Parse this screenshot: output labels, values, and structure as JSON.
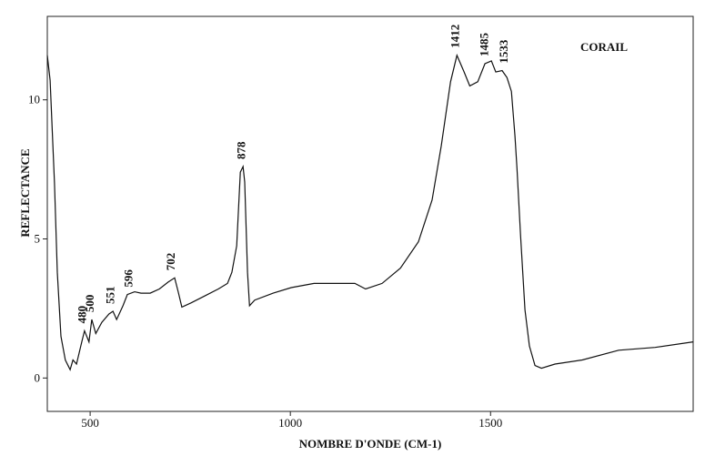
{
  "chart_data": {
    "type": "line",
    "title": "CORAIL",
    "x_label": "NOMBRE D'ONDE (CM-1)",
    "y_label": "REFLECTANCE",
    "xlim": [
      393,
      2006
    ],
    "ylim": [
      -1.2,
      13
    ],
    "xticks": [
      500,
      1000,
      1500
    ],
    "yticks": [
      0,
      5,
      10
    ],
    "grid": false,
    "x": [
      393,
      400,
      411,
      418,
      427,
      438,
      450,
      457,
      466,
      479,
      486,
      497,
      504,
      514,
      529,
      547,
      557,
      566,
      582,
      593,
      611,
      627,
      650,
      673,
      695,
      711,
      720,
      729,
      752,
      786,
      820,
      843,
      854,
      866,
      875,
      882,
      886,
      893,
      898,
      911,
      957,
      1002,
      1059,
      1116,
      1161,
      1188,
      1229,
      1275,
      1320,
      1354,
      1377,
      1400,
      1416,
      1434,
      1448,
      1468,
      1486,
      1502,
      1513,
      1529,
      1541,
      1552,
      1561,
      1566,
      1575,
      1586,
      1597,
      1611,
      1627,
      1661,
      1729,
      1820,
      1911,
      2006
    ],
    "series": [
      {
        "color": "#111111",
        "values": [
          11.6,
          10.7,
          7.0,
          3.8,
          1.5,
          0.65,
          0.3,
          0.65,
          0.5,
          1.3,
          1.7,
          1.3,
          2.1,
          1.6,
          2.0,
          2.3,
          2.4,
          2.1,
          2.6,
          3.0,
          3.1,
          3.05,
          3.05,
          3.2,
          3.45,
          3.6,
          3.1,
          2.55,
          2.7,
          2.95,
          3.2,
          3.4,
          3.8,
          4.75,
          7.4,
          7.6,
          7.05,
          3.8,
          2.6,
          2.8,
          3.05,
          3.25,
          3.4,
          3.4,
          3.4,
          3.2,
          3.4,
          3.95,
          4.9,
          6.4,
          8.35,
          10.65,
          11.6,
          11.0,
          10.5,
          10.65,
          11.3,
          11.4,
          11.0,
          11.05,
          10.8,
          10.3,
          8.7,
          7.55,
          5.1,
          2.45,
          1.15,
          0.45,
          0.35,
          0.5,
          0.65,
          1.0,
          1.1,
          1.3
        ]
      }
    ],
    "annotations": [
      {
        "text": "480",
        "x": 480
      },
      {
        "text": "500",
        "x": 500
      },
      {
        "text": "551",
        "x": 551
      },
      {
        "text": "596",
        "x": 596
      },
      {
        "text": "702",
        "x": 702
      },
      {
        "text": "878",
        "x": 878
      },
      {
        "text": "1412",
        "x": 1412
      },
      {
        "text": "1485",
        "x": 1485
      },
      {
        "text": "1533",
        "x": 1533
      }
    ]
  }
}
